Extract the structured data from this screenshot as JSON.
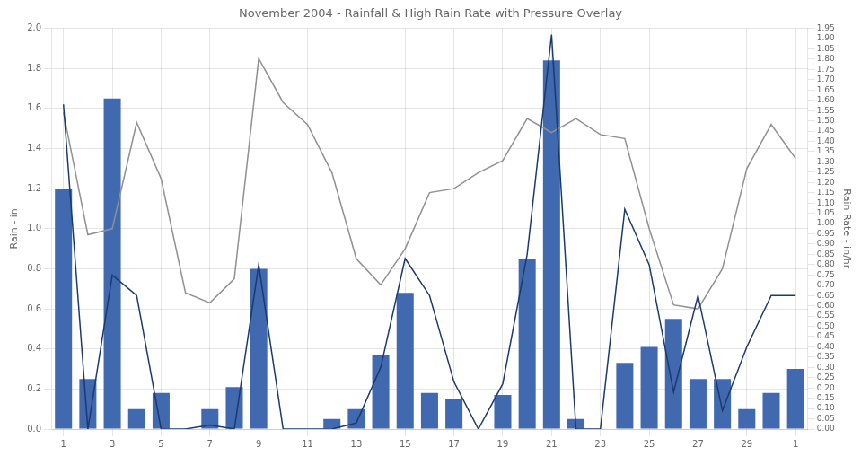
{
  "chart_data": {
    "type": "bar",
    "title": "November 2004 - Rainfall & High Rain Rate with Pressure Overlay",
    "ylabel": "Rain - in",
    "y2label": "Rain Rate - in/hr",
    "categories": [
      "1",
      null,
      "3",
      null,
      "5",
      null,
      "7",
      null,
      "9",
      null,
      "11",
      null,
      "13",
      null,
      "15",
      null,
      "17",
      null,
      "19",
      null,
      "21",
      null,
      "23",
      null,
      "25",
      null,
      "27",
      null,
      "29",
      null,
      "1"
    ],
    "series": [
      {
        "type": "bar",
        "color": "#4169b0",
        "values": [
          1.2,
          0.25,
          1.65,
          0.1,
          0.18,
          0.0,
          0.1,
          0.21,
          0.8,
          0.0,
          0.0,
          0.05,
          0.1,
          0.37,
          0.68,
          0.18,
          0.15,
          0.0,
          0.17,
          0.85,
          1.84,
          0.05,
          0.0,
          0.33,
          0.41,
          0.55,
          0.25,
          0.25,
          0.1,
          0.18,
          0.3
        ]
      },
      {
        "type": "line",
        "color": "#909090",
        "values": [
          1.58,
          0.97,
          1.0,
          1.53,
          1.25,
          0.68,
          0.63,
          0.75,
          1.85,
          1.63,
          1.52,
          1.28,
          0.85,
          0.72,
          0.9,
          1.18,
          1.2,
          1.28,
          1.34,
          1.55,
          1.48,
          1.55,
          1.47,
          1.45,
          1.0,
          0.62,
          0.6,
          0.8,
          1.3,
          1.52,
          1.35
        ]
      },
      {
        "type": "line",
        "color": "#1a3a6e",
        "axis": "y2",
        "values": [
          1.58,
          0.0,
          0.75,
          0.65,
          0.0,
          0.0,
          0.02,
          0.0,
          0.8,
          0.0,
          0.0,
          0.0,
          0.03,
          0.3,
          0.83,
          0.65,
          0.23,
          0.0,
          0.22,
          0.85,
          1.92,
          0.0,
          0.0,
          1.07,
          0.8,
          0.18,
          0.65,
          0.09,
          0.4,
          0.65,
          0.65
        ]
      }
    ],
    "ylim": [
      0.0,
      2.0
    ],
    "yticks": [
      {
        "value": 0,
        "label": "0.0"
      },
      0.2,
      0.4,
      0.6,
      0.8,
      {
        "value": 1,
        "label": "1.0"
      },
      1.2,
      1.4,
      1.6,
      1.8,
      {
        "value": 2,
        "label": "2.0"
      }
    ],
    "y2lim": [
      0.0,
      1.95
    ],
    "y2ticks": [
      {
        "value": 0,
        "label": "0.00"
      },
      0.05,
      {
        "value": 0.1,
        "label": "0.10"
      },
      0.15,
      {
        "value": 0.2,
        "label": "0.20"
      },
      0.25,
      {
        "value": 0.3,
        "label": "0.30"
      },
      0.35,
      {
        "value": 0.4,
        "label": "0.40"
      },
      0.45,
      {
        "value": 0.5,
        "label": "0.50"
      },
      0.55,
      {
        "value": 0.6,
        "label": "0.60"
      },
      0.65,
      {
        "value": 0.7,
        "label": "0.70"
      },
      0.75,
      {
        "value": 0.8,
        "label": "0.80"
      },
      0.85,
      {
        "value": 0.9,
        "label": "0.90"
      },
      0.95,
      {
        "value": 1,
        "label": "1.00"
      },
      1.05,
      {
        "value": 1.1,
        "label": "1.10"
      },
      1.15,
      {
        "value": 1.2,
        "label": "1.20"
      },
      1.25,
      {
        "value": 1.3,
        "label": "1.30"
      },
      1.35,
      {
        "value": 1.4,
        "label": "1.40"
      },
      1.45,
      {
        "value": 1.5,
        "label": "1.50"
      },
      1.55,
      {
        "value": 1.6,
        "label": "1.60"
      },
      1.65,
      {
        "value": 1.7,
        "label": "1.70"
      },
      1.75,
      {
        "value": 1.8,
        "label": "1.80"
      },
      1.85,
      {
        "value": 1.9,
        "label": "1.90"
      },
      1.95
    ],
    "grid": true
  }
}
